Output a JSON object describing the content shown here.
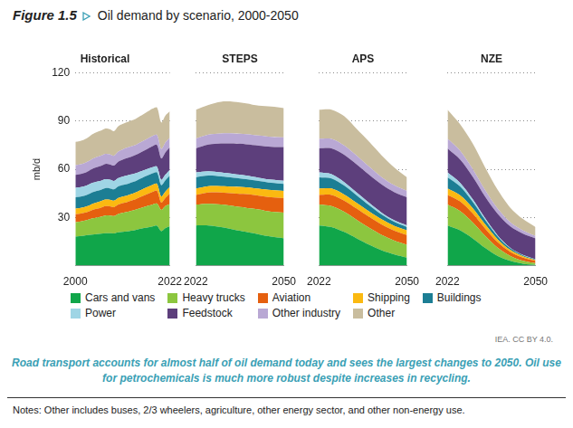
{
  "figure_label": "Figure 1.5",
  "title": "Oil demand by scenario, 2000-2050",
  "source": "IEA. CC BY 4.0.",
  "caption": "Road transport accounts for almost half of oil demand today and sees the largest changes to 2050. Oil use for petrochemicals is much more robust despite increases in recycling.",
  "notes": "Notes: Other includes buses, 2/3 wheelers, agriculture, other energy sector, and other non-energy use.",
  "chart_data": [
    {
      "type": "area",
      "title": "Historical",
      "y_label": "mb/d",
      "stacked": true,
      "grid": true,
      "legend": "bottom",
      "x": [
        2000,
        2001,
        2002,
        2003,
        2004,
        2005,
        2006,
        2007,
        2008,
        2009,
        2010,
        2011,
        2012,
        2013,
        2014,
        2015,
        2016,
        2017,
        2018,
        2019,
        2020,
        2021,
        2022
      ],
      "xlim": [
        2000,
        2022
      ],
      "xticks": [
        2000,
        2022
      ],
      "ylim": [
        0,
        120
      ],
      "yticks": [
        30,
        60,
        90,
        120
      ],
      "series": [
        {
          "name": "Cars and vans",
          "color": "#10a64a",
          "values": [
            18,
            18.3,
            18.6,
            19,
            19.4,
            19.6,
            19.9,
            20.2,
            20.2,
            20.1,
            20.7,
            21,
            21.3,
            21.7,
            22.2,
            22.8,
            23.4,
            23.9,
            24.4,
            24.8,
            21.5,
            23.4,
            24.5
          ]
        },
        {
          "name": "Heavy trucks",
          "color": "#8cc63f",
          "values": [
            9,
            9.1,
            9.3,
            9.6,
            10,
            10.3,
            10.6,
            11,
            11,
            10.8,
            11.5,
            11.9,
            12.1,
            12.4,
            12.6,
            12.9,
            13.1,
            13.4,
            13.7,
            13.8,
            13.2,
            13.8,
            13.9
          ]
        },
        {
          "name": "Aviation",
          "color": "#e5600f",
          "values": [
            5,
            4.9,
            4.9,
            5,
            5.3,
            5.5,
            5.6,
            5.8,
            5.7,
            5.5,
            5.8,
            6,
            6.1,
            6.3,
            6.5,
            6.8,
            7.2,
            7.5,
            7.8,
            8,
            4.5,
            5,
            6.5
          ]
        },
        {
          "name": "Shipping",
          "color": "#fbb911",
          "values": [
            3.5,
            3.5,
            3.5,
            3.6,
            3.8,
            3.9,
            4,
            4.1,
            4.1,
            4,
            4.1,
            4.1,
            4.1,
            4.1,
            4.2,
            4.3,
            4.4,
            4.4,
            4.4,
            4.3,
            3.9,
            4,
            4.1
          ]
        },
        {
          "name": "Buildings",
          "color": "#1c7e94",
          "values": [
            7,
            7,
            7.1,
            7.2,
            7.2,
            7.2,
            7.1,
            7.1,
            7.1,
            7.1,
            7.2,
            7.2,
            7.1,
            7.2,
            7.1,
            7.1,
            7.1,
            7.2,
            7.2,
            7.1,
            6.9,
            7,
            7
          ]
        },
        {
          "name": "Power",
          "color": "#9fd5e5",
          "values": [
            6,
            6,
            5.9,
            5.9,
            5.8,
            5.8,
            5.6,
            5.6,
            5.4,
            5.2,
            5.2,
            5.2,
            5.4,
            5,
            4.8,
            4.5,
            4.2,
            4,
            3.8,
            3.6,
            3.4,
            3.5,
            3.6
          ]
        },
        {
          "name": "Feedstock",
          "color": "#5d3f7c",
          "values": [
            8,
            8.1,
            8.3,
            8.5,
            8.8,
            9,
            9.3,
            9.5,
            9.5,
            9.6,
            10.2,
            10.5,
            10.8,
            11.1,
            11.4,
            11.8,
            12.2,
            12.6,
            13.1,
            13.5,
            13.3,
            13.9,
            14
          ]
        },
        {
          "name": "Other industry",
          "color": "#b9a8d4",
          "values": [
            6,
            6,
            6,
            6.1,
            6.2,
            6.3,
            6.3,
            6.3,
            6.3,
            6.1,
            6.3,
            6.4,
            6.4,
            6.4,
            6.3,
            6.3,
            6.3,
            6.3,
            6.3,
            6.2,
            5.9,
            6.1,
            6.1
          ]
        },
        {
          "name": "Other",
          "color": "#c9bd9e",
          "values": [
            14.5,
            14.6,
            14.7,
            14.9,
            15.3,
            15.5,
            15.6,
            15.7,
            15.6,
            15.2,
            15.7,
            15.8,
            15.9,
            16,
            16.2,
            16.4,
            16.6,
            16.8,
            17,
            17.1,
            16.5,
            16.8,
            16.3
          ]
        }
      ]
    },
    {
      "type": "area",
      "title": "STEPS",
      "stacked": true,
      "grid": true,
      "legend": "bottom",
      "tick_labels": "x",
      "x": [
        2022,
        2026,
        2030,
        2034,
        2038,
        2042,
        2046,
        2050
      ],
      "xlim": [
        2022,
        2050
      ],
      "xticks": [
        2022,
        2050
      ],
      "ylim": [
        0,
        120
      ],
      "yticks": [
        30,
        60,
        90,
        120
      ],
      "series": [
        {
          "name": "Cars and vans",
          "color": "#10a64a",
          "values": [
            25,
            25,
            24,
            22.5,
            21,
            19.5,
            18,
            17
          ]
        },
        {
          "name": "Heavy trucks",
          "color": "#8cc63f",
          "values": [
            13,
            13.5,
            14,
            14.5,
            15,
            15.5,
            15.5,
            16
          ]
        },
        {
          "name": "Aviation",
          "color": "#e5600f",
          "values": [
            6,
            7,
            7.5,
            8,
            8.5,
            8.5,
            9,
            9
          ]
        },
        {
          "name": "Shipping",
          "color": "#fbb911",
          "values": [
            4,
            4,
            4,
            4.2,
            4.3,
            4.4,
            4.5,
            4.5
          ]
        },
        {
          "name": "Buildings",
          "color": "#1c7e94",
          "values": [
            7,
            6.5,
            6,
            5.5,
            5,
            4.8,
            4.5,
            4.3
          ]
        },
        {
          "name": "Power",
          "color": "#9fd5e5",
          "values": [
            3,
            2.8,
            2.5,
            2.3,
            2.2,
            2,
            2,
            2
          ]
        },
        {
          "name": "Feedstock",
          "color": "#5d3f7c",
          "values": [
            15,
            16.5,
            18,
            19,
            19.5,
            20,
            20.5,
            21
          ]
        },
        {
          "name": "Other industry",
          "color": "#b9a8d4",
          "values": [
            6,
            6.2,
            6.3,
            6.3,
            6.3,
            6.2,
            6.1,
            6
          ]
        },
        {
          "name": "Other",
          "color": "#c9bd9e",
          "values": [
            18,
            18.5,
            19.7,
            19.7,
            19.2,
            18.6,
            18.9,
            18.2
          ]
        }
      ]
    },
    {
      "type": "area",
      "title": "APS",
      "stacked": true,
      "grid": true,
      "legend": "bottom",
      "tick_labels": "x",
      "x": [
        2022,
        2026,
        2030,
        2034,
        2038,
        2042,
        2046,
        2050
      ],
      "xlim": [
        2022,
        2050
      ],
      "xticks": [
        2022,
        2050
      ],
      "ylim": [
        0,
        120
      ],
      "yticks": [
        30,
        60,
        90,
        120
      ],
      "series": [
        {
          "name": "Cars and vans",
          "color": "#10a64a",
          "values": [
            25,
            24,
            21,
            17,
            13,
            9.5,
            7,
            5
          ]
        },
        {
          "name": "Heavy trucks",
          "color": "#8cc63f",
          "values": [
            13,
            13,
            12.5,
            11.5,
            10.5,
            9.5,
            8.5,
            8
          ]
        },
        {
          "name": "Aviation",
          "color": "#e5600f",
          "values": [
            6,
            7,
            7,
            7,
            6.8,
            6.5,
            6.2,
            6
          ]
        },
        {
          "name": "Shipping",
          "color": "#fbb911",
          "values": [
            4,
            4,
            3.8,
            3.6,
            3.4,
            3.2,
            3,
            3
          ]
        },
        {
          "name": "Buildings",
          "color": "#1c7e94",
          "values": [
            7,
            6.3,
            5.5,
            4.6,
            3.8,
            3,
            2.5,
            2
          ]
        },
        {
          "name": "Power",
          "color": "#9fd5e5",
          "values": [
            3,
            2.6,
            2.2,
            1.8,
            1.5,
            1.2,
            1,
            1
          ]
        },
        {
          "name": "Feedstock",
          "color": "#5d3f7c",
          "values": [
            15,
            16,
            17,
            17.5,
            17.5,
            17.5,
            17.5,
            17.5
          ]
        },
        {
          "name": "Other industry",
          "color": "#b9a8d4",
          "values": [
            6,
            6,
            5.8,
            5.5,
            5,
            4.6,
            4.3,
            4
          ]
        },
        {
          "name": "Other",
          "color": "#c9bd9e",
          "values": [
            18,
            18.1,
            18.2,
            16.5,
            15.5,
            13.5,
            11,
            8.5
          ]
        }
      ]
    },
    {
      "type": "area",
      "title": "NZE",
      "stacked": true,
      "grid": true,
      "legend": "bottom",
      "tick_labels": "x",
      "x": [
        2022,
        2026,
        2030,
        2034,
        2038,
        2042,
        2046,
        2050
      ],
      "xlim": [
        2022,
        2050
      ],
      "xticks": [
        2022,
        2050
      ],
      "ylim": [
        0,
        120
      ],
      "yticks": [
        30,
        60,
        90,
        120
      ],
      "series": [
        {
          "name": "Cars and vans",
          "color": "#10a64a",
          "values": [
            25,
            22,
            17,
            11,
            6,
            3,
            1.2,
            0.5
          ]
        },
        {
          "name": "Heavy trucks",
          "color": "#8cc63f",
          "values": [
            13,
            12,
            10,
            7.5,
            5,
            3,
            1.8,
            1
          ]
        },
        {
          "name": "Aviation",
          "color": "#e5600f",
          "values": [
            6,
            6,
            5.5,
            4.5,
            3.5,
            2.5,
            2,
            1.5
          ]
        },
        {
          "name": "Shipping",
          "color": "#fbb911",
          "values": [
            4,
            3.8,
            3.3,
            2.6,
            1.8,
            1.2,
            0.8,
            0.5
          ]
        },
        {
          "name": "Buildings",
          "color": "#1c7e94",
          "values": [
            7,
            5.5,
            4,
            2.8,
            1.8,
            1,
            0.6,
            0.3
          ]
        },
        {
          "name": "Power",
          "color": "#9fd5e5",
          "values": [
            3,
            2.3,
            1.6,
            1,
            0.6,
            0.4,
            0.3,
            0.2
          ]
        },
        {
          "name": "Feedstock",
          "color": "#5d3f7c",
          "values": [
            15,
            14.5,
            14,
            13.5,
            13.5,
            13.3,
            13.2,
            13
          ]
        },
        {
          "name": "Other industry",
          "color": "#b9a8d4",
          "values": [
            6,
            5.5,
            4.8,
            4,
            3.2,
            2.5,
            2,
            1.5
          ]
        },
        {
          "name": "Other",
          "color": "#c9bd9e",
          "values": [
            18,
            16.4,
            15.8,
            14.1,
            11.6,
            9.1,
            7.1,
            5.5
          ]
        }
      ]
    }
  ]
}
